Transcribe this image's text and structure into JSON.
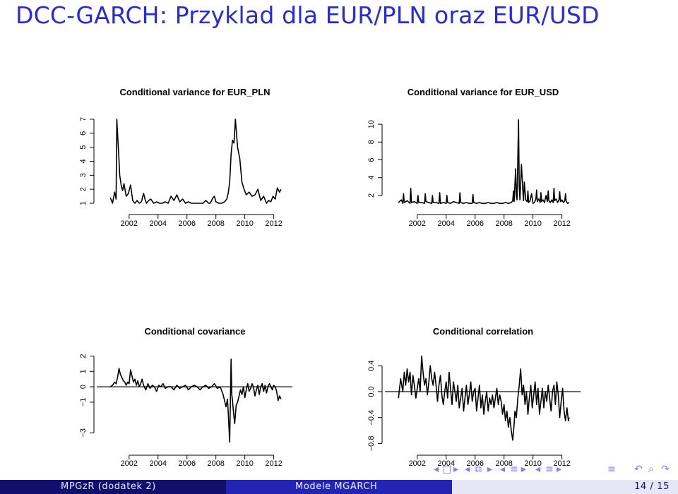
{
  "slide": {
    "title": "DCC-GARCH: Przyklad dla EUR/PLN oraz EUR/USD"
  },
  "footer": {
    "left": "MPGzR (dodatek 2)",
    "center": "Modele MGARCH",
    "right": "14 / 15"
  },
  "nav": {
    "icons": [
      "frame-prev-icon",
      "frame-icon",
      "frame-next-icon",
      "section-prev-icon",
      "section-icon",
      "section-next-icon",
      "subsection-prev-icon",
      "subsection-icon",
      "subsection-next-icon",
      "align-icon",
      "search-back-icon",
      "search-icon"
    ]
  },
  "chart_data": [
    {
      "type": "line",
      "title": "Conditional variance for EUR_PLN",
      "xlabel": "",
      "ylabel": "",
      "xticks": [
        2002,
        2004,
        2006,
        2008,
        2010,
        2012
      ],
      "yticks": [
        1,
        2,
        3,
        4,
        5,
        6,
        7
      ],
      "xlim": [
        2000.3,
        2012.8
      ],
      "ylim": [
        0.8,
        7.4
      ],
      "series": [
        {
          "x": [
            2000.7,
            2000.85,
            2001.0,
            2001.1,
            2001.15,
            2001.2,
            2001.28,
            2001.35,
            2001.45,
            2001.55,
            2001.65,
            2001.8,
            2001.95,
            2002.1,
            2002.25,
            2002.4,
            2002.55,
            2002.7,
            2002.85,
            2003.0,
            2003.1,
            2003.2,
            2003.35,
            2003.5,
            2003.7,
            2003.9,
            2004.1,
            2004.3,
            2004.5,
            2004.7,
            2004.9,
            2005.1,
            2005.3,
            2005.5,
            2005.7,
            2005.9,
            2006.1,
            2006.3,
            2006.5,
            2006.7,
            2006.9,
            2007.1,
            2007.3,
            2007.5,
            2007.6,
            2007.7,
            2007.8,
            2007.9,
            2008.0,
            2008.2,
            2008.4,
            2008.6,
            2008.75,
            2008.85,
            2008.95,
            2009.05,
            2009.15,
            2009.25,
            2009.35,
            2009.5,
            2009.65,
            2009.8,
            2009.95,
            2010.1,
            2010.3,
            2010.5,
            2010.7,
            2010.9,
            2011.1,
            2011.3,
            2011.5,
            2011.65,
            2011.8,
            2011.95,
            2012.1,
            2012.25,
            2012.4,
            2012.5
          ],
          "y": [
            1.4,
            1.0,
            1.8,
            1.3,
            7.0,
            6.0,
            4.5,
            3.0,
            2.3,
            1.9,
            2.4,
            1.5,
            1.7,
            2.3,
            1.2,
            1.0,
            1.2,
            1.0,
            1.1,
            1.7,
            1.3,
            1.0,
            1.2,
            1.3,
            1.0,
            1.1,
            1.0,
            1.0,
            1.1,
            1.0,
            1.5,
            1.2,
            1.6,
            1.1,
            1.3,
            1.0,
            1.1,
            1.0,
            1.0,
            1.0,
            1.0,
            1.0,
            1.2,
            1.0,
            1.0,
            1.2,
            1.4,
            1.5,
            1.1,
            1.0,
            1.0,
            1.1,
            1.3,
            1.7,
            2.5,
            4.5,
            5.5,
            5.3,
            7.0,
            5.0,
            4.2,
            2.5,
            2.0,
            1.6,
            1.8,
            1.5,
            1.6,
            2.0,
            1.2,
            1.5,
            1.0,
            1.2,
            1.1,
            1.5,
            1.3,
            2.1,
            1.8,
            2.0
          ]
        }
      ]
    },
    {
      "type": "line",
      "title": "Conditional variance for EUR_USD",
      "xlabel": "",
      "ylabel": "",
      "xticks": [
        2002,
        2004,
        2006,
        2008,
        2010,
        2012
      ],
      "yticks": [
        2,
        4,
        6,
        8,
        10
      ],
      "xlim": [
        2000.3,
        2012.8
      ],
      "ylim": [
        0.8,
        11.2
      ],
      "series": [
        {
          "x": [
            2000.7,
            2000.9,
            2001.0,
            2001.05,
            2001.1,
            2001.3,
            2001.5,
            2001.55,
            2001.6,
            2001.8,
            2002.0,
            2002.05,
            2002.1,
            2002.3,
            2002.5,
            2002.55,
            2002.6,
            2002.8,
            2003.0,
            2003.05,
            2003.1,
            2003.3,
            2003.5,
            2003.55,
            2003.6,
            2003.8,
            2004.0,
            2004.05,
            2004.1,
            2004.3,
            2004.5,
            2004.7,
            2004.9,
            2004.95,
            2005.0,
            2005.2,
            2005.4,
            2005.6,
            2005.8,
            2005.85,
            2005.9,
            2006.1,
            2006.3,
            2006.5,
            2006.7,
            2006.9,
            2007.1,
            2007.3,
            2007.5,
            2007.7,
            2007.9,
            2008.1,
            2008.3,
            2008.5,
            2008.6,
            2008.65,
            2008.7,
            2008.8,
            2008.85,
            2008.9,
            2009.0,
            2009.05,
            2009.1,
            2009.2,
            2009.3,
            2009.35,
            2009.4,
            2009.5,
            2009.6,
            2009.65,
            2009.7,
            2009.8,
            2009.9,
            2010.0,
            2010.1,
            2010.2,
            2010.25,
            2010.3,
            2010.4,
            2010.5,
            2010.55,
            2010.6,
            2010.7,
            2010.8,
            2010.9,
            2011.0,
            2011.05,
            2011.1,
            2011.2,
            2011.3,
            2011.4,
            2011.45,
            2011.5,
            2011.6,
            2011.7,
            2011.8,
            2011.85,
            2011.9,
            2012.0,
            2012.1,
            2012.2,
            2012.25,
            2012.3,
            2012.4,
            2012.5
          ],
          "y": [
            1.2,
            1.5,
            1.1,
            2.2,
            1.2,
            1.4,
            1.1,
            2.8,
            1.2,
            1.3,
            1.1,
            2.0,
            1.2,
            1.2,
            1.1,
            2.2,
            1.3,
            1.2,
            1.1,
            2.0,
            1.2,
            1.2,
            1.1,
            2.3,
            1.1,
            1.2,
            1.1,
            2.0,
            1.2,
            1.1,
            1.3,
            1.2,
            1.1,
            2.3,
            1.2,
            1.1,
            1.2,
            1.1,
            1.1,
            2.1,
            1.2,
            1.1,
            1.2,
            1.1,
            1.1,
            1.2,
            1.1,
            1.1,
            1.2,
            1.1,
            1.1,
            1.2,
            1.1,
            1.2,
            1.4,
            2.5,
            1.3,
            5.0,
            2.0,
            1.5,
            10.5,
            3.0,
            1.5,
            5.5,
            2.5,
            1.4,
            3.5,
            1.5,
            1.3,
            2.5,
            1.2,
            1.4,
            2.2,
            1.1,
            1.2,
            1.6,
            2.6,
            1.3,
            1.6,
            1.2,
            2.3,
            1.3,
            1.5,
            1.2,
            2.0,
            1.3,
            2.5,
            1.4,
            1.2,
            1.5,
            1.2,
            2.8,
            1.4,
            1.6,
            1.2,
            1.5,
            2.4,
            1.3,
            1.5,
            1.2,
            1.4,
            2.2,
            1.3,
            1.1,
            1.2
          ]
        }
      ]
    },
    {
      "type": "line",
      "title": "Conditional covariance",
      "xlabel": "",
      "ylabel": "",
      "xticks": [
        2002,
        2004,
        2006,
        2008,
        2010,
        2012
      ],
      "yticks": [
        -3,
        -1,
        0,
        1,
        2
      ],
      "ytick_labels": [
        "−3",
        "−1",
        "0",
        "1",
        "2"
      ],
      "xlim": [
        2000.3,
        2012.8
      ],
      "ylim": [
        -3.9,
        2.3
      ],
      "hline": 0,
      "series": [
        {
          "x": [
            2000.7,
            2000.85,
            2001.0,
            2001.1,
            2001.2,
            2001.3,
            2001.4,
            2001.5,
            2001.6,
            2001.7,
            2001.8,
            2001.9,
            2002.0,
            2002.1,
            2002.2,
            2002.3,
            2002.4,
            2002.5,
            2002.6,
            2002.7,
            2002.8,
            2002.9,
            2003.0,
            2003.15,
            2003.3,
            2003.45,
            2003.6,
            2003.75,
            2003.9,
            2004.05,
            2004.2,
            2004.35,
            2004.5,
            2004.7,
            2004.9,
            2005.1,
            2005.3,
            2005.5,
            2005.7,
            2005.9,
            2006.1,
            2006.3,
            2006.5,
            2006.7,
            2006.9,
            2007.1,
            2007.3,
            2007.5,
            2007.7,
            2007.9,
            2008.1,
            2008.3,
            2008.5,
            2008.7,
            2008.8,
            2008.85,
            2008.95,
            2009.0,
            2009.05,
            2009.1,
            2009.15,
            2009.2,
            2009.3,
            2009.4,
            2009.5,
            2009.6,
            2009.7,
            2009.8,
            2009.9,
            2010.0,
            2010.1,
            2010.2,
            2010.3,
            2010.4,
            2010.5,
            2010.6,
            2010.7,
            2010.8,
            2010.9,
            2011.0,
            2011.1,
            2011.2,
            2011.3,
            2011.4,
            2011.5,
            2011.6,
            2011.7,
            2011.8,
            2011.9,
            2012.0,
            2012.1,
            2012.2,
            2012.3,
            2012.4,
            2012.5
          ],
          "y": [
            0.0,
            0.1,
            0.3,
            0.2,
            0.6,
            1.2,
            0.8,
            0.6,
            0.4,
            0.3,
            0.1,
            0.3,
            0.2,
            1.1,
            0.7,
            0.3,
            0.5,
            0.1,
            0.4,
            0.0,
            0.2,
            0.5,
            0.1,
            -0.2,
            0.2,
            -0.1,
            0.1,
            0.0,
            -0.3,
            0.1,
            0.0,
            0.2,
            -0.1,
            0.0,
            0.0,
            -0.2,
            0.1,
            -0.1,
            0.0,
            0.1,
            -0.2,
            0.0,
            0.1,
            0.0,
            -0.2,
            0.0,
            0.1,
            -0.1,
            0.0,
            0.2,
            -0.1,
            0.0,
            -0.5,
            -1.3,
            -0.8,
            -1.6,
            -3.6,
            -1.0,
            1.8,
            -0.5,
            -0.9,
            -1.5,
            -2.4,
            -1.2,
            -1.0,
            -0.6,
            -0.2,
            -0.5,
            0.0,
            -0.7,
            -0.2,
            0.2,
            -0.3,
            -0.1,
            0.2,
            0.0,
            -0.6,
            -0.2,
            0.1,
            -0.5,
            0.0,
            0.2,
            -0.3,
            0.1,
            -0.4,
            0.0,
            0.2,
            0.0,
            -0.2,
            0.1,
            0.0,
            -0.3,
            -0.9,
            -0.6,
            -0.8
          ]
        }
      ]
    },
    {
      "type": "line",
      "title": "Conditional correlation",
      "xlabel": "",
      "ylabel": "",
      "xticks": [
        2002,
        2004,
        2006,
        2008,
        2010,
        2012
      ],
      "yticks": [
        -0.8,
        -0.4,
        0.0,
        0.4
      ],
      "ytick_labels": [
        "−0.8",
        "−0.4",
        "0.0",
        "0.4"
      ],
      "xlim": [
        2000.3,
        2012.8
      ],
      "ylim": [
        -0.85,
        0.62
      ],
      "hline": 0,
      "series": [
        {
          "x": [
            2000.7,
            2000.85,
            2001.0,
            2001.1,
            2001.2,
            2001.3,
            2001.4,
            2001.5,
            2001.6,
            2001.7,
            2001.8,
            2001.9,
            2002.0,
            2002.1,
            2002.2,
            2002.3,
            2002.4,
            2002.5,
            2002.6,
            2002.7,
            2002.8,
            2002.9,
            2003.0,
            2003.1,
            2003.2,
            2003.3,
            2003.4,
            2003.5,
            2003.6,
            2003.7,
            2003.8,
            2003.9,
            2004.0,
            2004.1,
            2004.2,
            2004.3,
            2004.4,
            2004.5,
            2004.6,
            2004.7,
            2004.8,
            2004.9,
            2005.0,
            2005.1,
            2005.2,
            2005.3,
            2005.4,
            2005.5,
            2005.6,
            2005.7,
            2005.8,
            2005.9,
            2006.0,
            2006.1,
            2006.2,
            2006.3,
            2006.4,
            2006.5,
            2006.6,
            2006.7,
            2006.8,
            2006.9,
            2007.0,
            2007.1,
            2007.2,
            2007.3,
            2007.4,
            2007.5,
            2007.6,
            2007.7,
            2007.8,
            2007.9,
            2008.0,
            2008.1,
            2008.2,
            2008.3,
            2008.4,
            2008.5,
            2008.6,
            2008.7,
            2008.75,
            2008.85,
            2008.95,
            2009.05,
            2009.15,
            2009.25,
            2009.35,
            2009.45,
            2009.55,
            2009.65,
            2009.75,
            2009.85,
            2009.95,
            2010.05,
            2010.15,
            2010.25,
            2010.35,
            2010.45,
            2010.55,
            2010.65,
            2010.75,
            2010.85,
            2010.95,
            2011.05,
            2011.15,
            2011.25,
            2011.35,
            2011.45,
            2011.55,
            2011.65,
            2011.75,
            2011.85,
            2011.95,
            2012.05,
            2012.15,
            2012.25,
            2012.35,
            2012.45,
            2012.5
          ],
          "y": [
            -0.1,
            0.2,
            0.0,
            0.3,
            0.1,
            0.35,
            0.15,
            0.3,
            -0.05,
            0.25,
            0.1,
            -0.1,
            0.05,
            0.2,
            0.0,
            0.55,
            0.3,
            0.1,
            0.2,
            -0.05,
            0.15,
            0.4,
            0.2,
            0.1,
            0.3,
            0.1,
            -0.15,
            0.1,
            0.25,
            -0.05,
            -0.2,
            0.0,
            0.15,
            -0.1,
            0.3,
            0.05,
            -0.2,
            0.15,
            0.0,
            -0.15,
            0.1,
            -0.25,
            -0.1,
            0.05,
            -0.3,
            -0.1,
            0.1,
            -0.2,
            -0.05,
            0.15,
            -0.15,
            0.0,
            0.05,
            -0.3,
            -0.1,
            0.1,
            -0.25,
            -0.05,
            -0.35,
            -0.15,
            0.0,
            -0.3,
            -0.1,
            -0.2,
            -0.05,
            -0.25,
            -0.1,
            0.05,
            -0.2,
            -0.05,
            -0.15,
            -0.35,
            -0.2,
            -0.45,
            -0.3,
            -0.55,
            -0.4,
            -0.6,
            -0.75,
            -0.5,
            -0.3,
            -0.4,
            -0.1,
            0.1,
            0.35,
            -0.05,
            0.1,
            -0.2,
            0.0,
            -0.35,
            -0.1,
            0.1,
            -0.25,
            -0.05,
            0.15,
            -0.2,
            0.05,
            -0.35,
            -0.15,
            0.05,
            -0.25,
            0.0,
            -0.15,
            0.1,
            -0.1,
            -0.3,
            0.0,
            0.1,
            -0.2,
            0.15,
            -0.05,
            -0.4,
            -0.15,
            0.05,
            -0.3,
            -0.45,
            -0.25,
            -0.45,
            -0.4
          ]
        }
      ]
    }
  ]
}
